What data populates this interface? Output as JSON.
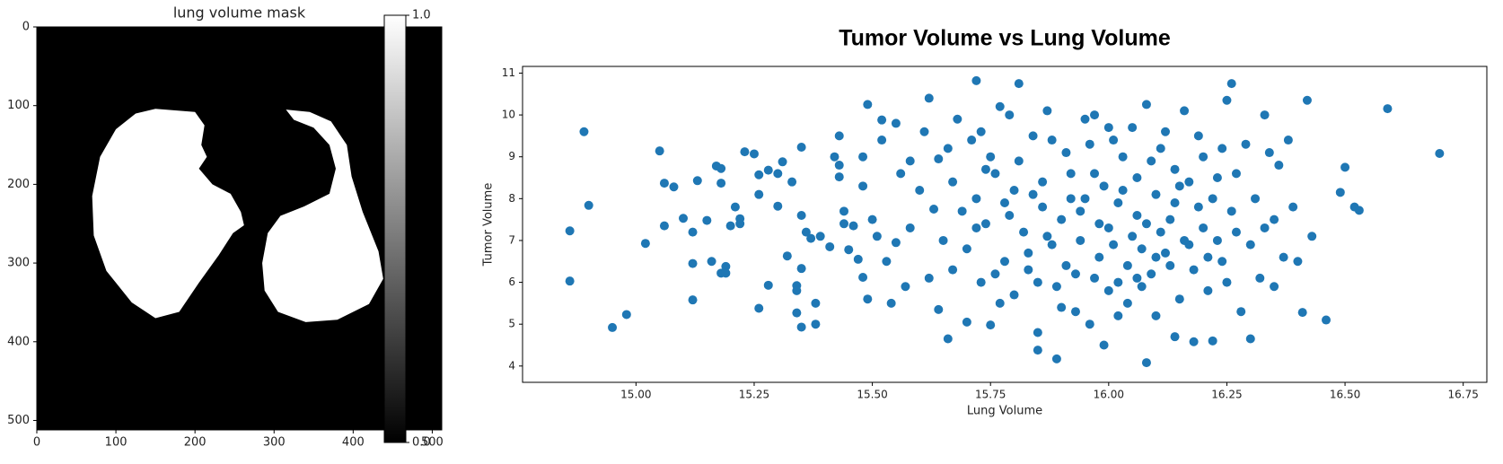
{
  "chart_data": [
    {
      "type": "image",
      "title": "lung volume mask",
      "cmap": "gray",
      "xlim": [
        0,
        512
      ],
      "ylim": [
        512,
        0
      ],
      "xticks": [
        0,
        100,
        200,
        300,
        400,
        500
      ],
      "yticks": [
        0,
        100,
        200,
        300,
        400,
        500
      ],
      "colorbar_lim": [
        0,
        1
      ],
      "colorbar_ticks": [
        {
          "value": 0,
          "label": "0.0"
        },
        {
          "value": 1,
          "label": "1.0"
        }
      ]
    },
    {
      "type": "scatter",
      "title": "Tumor Volume vs Lung Volume",
      "xlabel": "Lung Volume",
      "ylabel": "Tumor Volume",
      "color": "#1f77b4",
      "xlim": [
        14.76,
        16.8
      ],
      "ylim": [
        3.61,
        11.16
      ],
      "xticks": [
        {
          "value": 15,
          "label": "15.00"
        },
        {
          "value": 15.25,
          "label": "15.25"
        },
        {
          "value": 15.5,
          "label": "15.50"
        },
        {
          "value": 15.75,
          "label": "15.75"
        },
        {
          "value": 16,
          "label": "16.00"
        },
        {
          "value": 16.25,
          "label": "16.25"
        },
        {
          "value": 16.5,
          "label": "16.50"
        },
        {
          "value": 16.75,
          "label": "16.75"
        }
      ],
      "yticks": [
        4,
        5,
        6,
        7,
        8,
        9,
        10,
        11
      ],
      "x": [
        14.86,
        14.86,
        14.89,
        14.9,
        14.95,
        14.98,
        15.02,
        15.05,
        15.06,
        15.06,
        15.08,
        15.1,
        15.12,
        15.12,
        15.12,
        15.13,
        15.15,
        15.16,
        15.17,
        15.18,
        15.18,
        15.18,
        15.19,
        15.19,
        15.2,
        15.21,
        15.22,
        15.22,
        15.23,
        15.25,
        15.26,
        15.26,
        15.26,
        15.28,
        15.28,
        15.3,
        15.3,
        15.31,
        15.32,
        15.33,
        15.34,
        15.34,
        15.34,
        15.35,
        15.35,
        15.35,
        15.35,
        15.36,
        15.37,
        15.38,
        15.38,
        15.39,
        15.41,
        15.42,
        15.43,
        15.43,
        15.43,
        15.44,
        15.44,
        15.45,
        15.46,
        15.47,
        15.48,
        15.48,
        15.48,
        15.49,
        15.49,
        15.5,
        15.51,
        15.52,
        15.52,
        15.53,
        15.54,
        15.55,
        15.55,
        15.56,
        15.57,
        15.58,
        15.58,
        15.6,
        15.61,
        15.62,
        15.62,
        15.63,
        15.64,
        15.64,
        15.65,
        15.66,
        15.66,
        15.67,
        15.67,
        15.68,
        15.69,
        15.7,
        15.7,
        15.71,
        15.72,
        15.72,
        15.73,
        15.74,
        15.75,
        15.75,
        15.76,
        15.77,
        15.78,
        15.78,
        15.79,
        15.8,
        15.8,
        15.81,
        15.82,
        15.83,
        15.84,
        15.85,
        15.85,
        15.86,
        15.87,
        15.88,
        15.89,
        15.9,
        15.9,
        15.91,
        15.92,
        15.93,
        15.94,
        15.95,
        15.96,
        15.97,
        15.98,
        15.99,
        16.0,
        16.01,
        16.02,
        16.03,
        16.04,
        16.05,
        16.06,
        16.07,
        16.08,
        16.08,
        16.09,
        16.1,
        16.11,
        16.12,
        16.13,
        16.14,
        16.15,
        16.16,
        16.17,
        16.18,
        16.19,
        16.2,
        16.21,
        16.22,
        16.23,
        16.24,
        16.25,
        16.26,
        16.27,
        16.28,
        16.29,
        16.3,
        16.31,
        16.32,
        16.33,
        16.34,
        16.35,
        16.36,
        16.37,
        16.38,
        16.39,
        16.4,
        16.41,
        16.42,
        16.43,
        16.46,
        16.49,
        16.5,
        16.52,
        16.53,
        16.59,
        16.7,
        15.72,
        15.74,
        15.76,
        15.79,
        15.81,
        15.83,
        15.86,
        15.88,
        15.89,
        15.91,
        15.92,
        15.94,
        15.96,
        15.97,
        15.99,
        16.0,
        16.01,
        16.02,
        16.03,
        16.04,
        16.05,
        16.06,
        16.07,
        16.08,
        16.09,
        16.1,
        16.11,
        16.12,
        16.13,
        16.14,
        16.15,
        16.16,
        16.17,
        16.18,
        16.19,
        16.2,
        16.21,
        16.22,
        16.23,
        16.24,
        16.25,
        16.26,
        15.85,
        15.87,
        15.93,
        15.95,
        15.98,
        16.0,
        15.77,
        15.84,
        16.02,
        16.06,
        16.1,
        16.14,
        15.73,
        15.97,
        16.27,
        16.3,
        16.33,
        16.35
      ],
      "values": [
        7.23,
        6.03,
        9.6,
        7.84,
        4.92,
        5.23,
        6.93,
        9.14,
        8.37,
        7.35,
        8.28,
        7.53,
        7.2,
        6.45,
        5.58,
        8.43,
        7.48,
        6.5,
        8.78,
        8.72,
        8.37,
        6.22,
        6.38,
        6.22,
        7.35,
        7.8,
        7.52,
        7.4,
        9.12,
        9.07,
        8.57,
        8.1,
        5.38,
        5.93,
        8.68,
        8.6,
        7.82,
        8.88,
        6.63,
        8.4,
        5.92,
        5.8,
        5.27,
        6.33,
        4.93,
        7.6,
        9.23,
        7.2,
        7.05,
        5.5,
        5.0,
        7.1,
        6.85,
        9.0,
        9.5,
        8.8,
        8.52,
        7.7,
        7.4,
        6.78,
        7.35,
        6.55,
        9.0,
        8.3,
        6.12,
        10.25,
        5.6,
        7.5,
        7.1,
        9.4,
        9.88,
        6.5,
        5.5,
        9.8,
        6.95,
        8.6,
        5.9,
        8.9,
        7.3,
        8.2,
        9.6,
        10.4,
        6.1,
        7.75,
        8.95,
        5.35,
        7.0,
        9.2,
        4.65,
        6.3,
        8.4,
        9.9,
        7.7,
        5.05,
        6.8,
        9.4,
        10.82,
        8.0,
        6.0,
        7.4,
        4.98,
        9.0,
        8.6,
        10.2,
        6.5,
        7.9,
        10.0,
        8.2,
        5.7,
        10.75,
        7.2,
        6.3,
        9.5,
        4.38,
        4.8,
        8.4,
        10.1,
        6.9,
        4.17,
        7.5,
        5.4,
        9.1,
        8.0,
        6.2,
        7.0,
        9.9,
        5.0,
        8.6,
        6.6,
        4.5,
        7.3,
        9.4,
        6.0,
        8.2,
        5.5,
        9.7,
        7.6,
        6.8,
        4.08,
        10.25,
        8.9,
        5.2,
        7.2,
        9.6,
        6.4,
        4.7,
        8.3,
        10.1,
        6.9,
        4.58,
        7.8,
        9.0,
        5.8,
        4.6,
        8.5,
        6.5,
        10.35,
        10.75,
        7.2,
        5.3,
        9.3,
        4.65,
        8.0,
        6.1,
        10.0,
        9.1,
        7.5,
        8.8,
        6.6,
        9.4,
        7.8,
        6.5,
        5.28,
        10.35,
        7.1,
        5.1,
        8.15,
        8.75,
        7.8,
        7.72,
        10.15,
        9.08,
        7.3,
        8.7,
        6.2,
        7.6,
        8.9,
        6.7,
        7.8,
        9.4,
        5.9,
        6.4,
        8.6,
        7.7,
        9.3,
        6.1,
        8.3,
        5.8,
        6.9,
        7.9,
        9.0,
        6.4,
        7.1,
        8.5,
        5.9,
        7.4,
        6.2,
        8.1,
        9.2,
        6.7,
        7.5,
        8.7,
        5.6,
        7.0,
        8.4,
        6.3,
        9.5,
        7.3,
        6.6,
        8.0,
        7.0,
        9.2,
        6.0,
        7.7,
        6.0,
        7.1,
        5.3,
        8.0,
        7.4,
        9.7,
        5.5,
        8.1,
        5.2,
        6.1,
        6.6,
        7.9,
        9.6,
        10.0,
        8.6,
        6.9,
        7.3,
        5.9
      ]
    }
  ]
}
